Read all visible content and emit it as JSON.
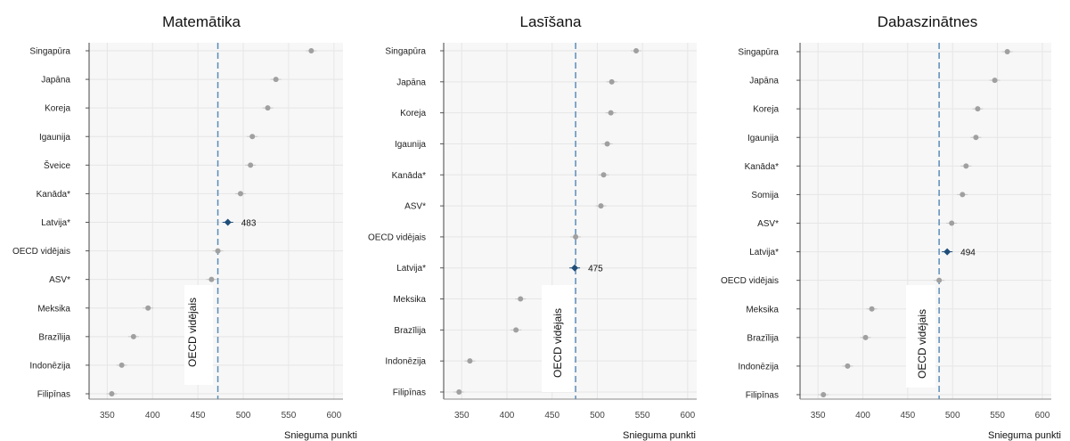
{
  "chart_data": [
    {
      "type": "scatter",
      "title": "Matemātika",
      "xlabel": "Snieguma punkti",
      "xlim": [
        330,
        610
      ],
      "xticks": [
        350,
        400,
        450,
        500,
        550,
        600
      ],
      "reference_line": {
        "value": 472,
        "label": "OECD vidējais"
      },
      "highlight": "Latvija*",
      "categories": [
        "Singapūra",
        "Japāna",
        "Koreja",
        "Igaunija",
        "Šveice",
        "Kanāda*",
        "Latvija*",
        "OECD vidējais",
        "ASV*",
        "Meksika",
        "Brazīlija",
        "Indonēzija",
        "Filipīnas"
      ],
      "values": [
        575,
        536,
        527,
        510,
        508,
        497,
        483,
        472,
        465,
        395,
        379,
        366,
        355
      ],
      "data_labels": {
        "Latvija*": "483"
      }
    },
    {
      "type": "scatter",
      "title": "Lasīšana",
      "xlabel": "Snieguma punkti",
      "xlim": [
        330,
        610
      ],
      "xticks": [
        350,
        400,
        450,
        500,
        550,
        600
      ],
      "reference_line": {
        "value": 476,
        "label": "OECD vidējais"
      },
      "highlight": "Latvija*",
      "categories": [
        "Singapūra",
        "Japāna",
        "Koreja",
        "Igaunija",
        "Kanāda*",
        "ASV*",
        "OECD vidējais",
        "Latvija*",
        "Meksika",
        "Brazīlija",
        "Indonēzija",
        "Filipīnas"
      ],
      "values": [
        543,
        516,
        515,
        511,
        507,
        504,
        476,
        475,
        415,
        410,
        359,
        347
      ],
      "data_labels": {
        "Latvija*": "475"
      }
    },
    {
      "type": "scatter",
      "title": "Dabaszinātnes",
      "xlabel": "Snieguma punkti",
      "xlim": [
        330,
        610
      ],
      "xticks": [
        350,
        400,
        450,
        500,
        550,
        600
      ],
      "reference_line": {
        "value": 485,
        "label": "OECD vidējais"
      },
      "highlight": "Latvija*",
      "categories": [
        "Singapūra",
        "Japāna",
        "Koreja",
        "Igaunija",
        "Kanāda*",
        "Somija",
        "ASV*",
        "Latvija*",
        "OECD vidējais",
        "Meksika",
        "Brazīlija",
        "Indonēzija",
        "Filipīnas"
      ],
      "values": [
        561,
        547,
        528,
        526,
        515,
        511,
        499,
        494,
        485,
        410,
        403,
        383,
        356
      ],
      "data_labels": {
        "Latvija*": "494"
      }
    }
  ],
  "colors": {
    "point": "#a0a0a0",
    "highlight": "#1f4e79",
    "reference_line": "#5b8db8",
    "plot_bg": "#f7f7f7",
    "grid": "#e6e6e6"
  }
}
